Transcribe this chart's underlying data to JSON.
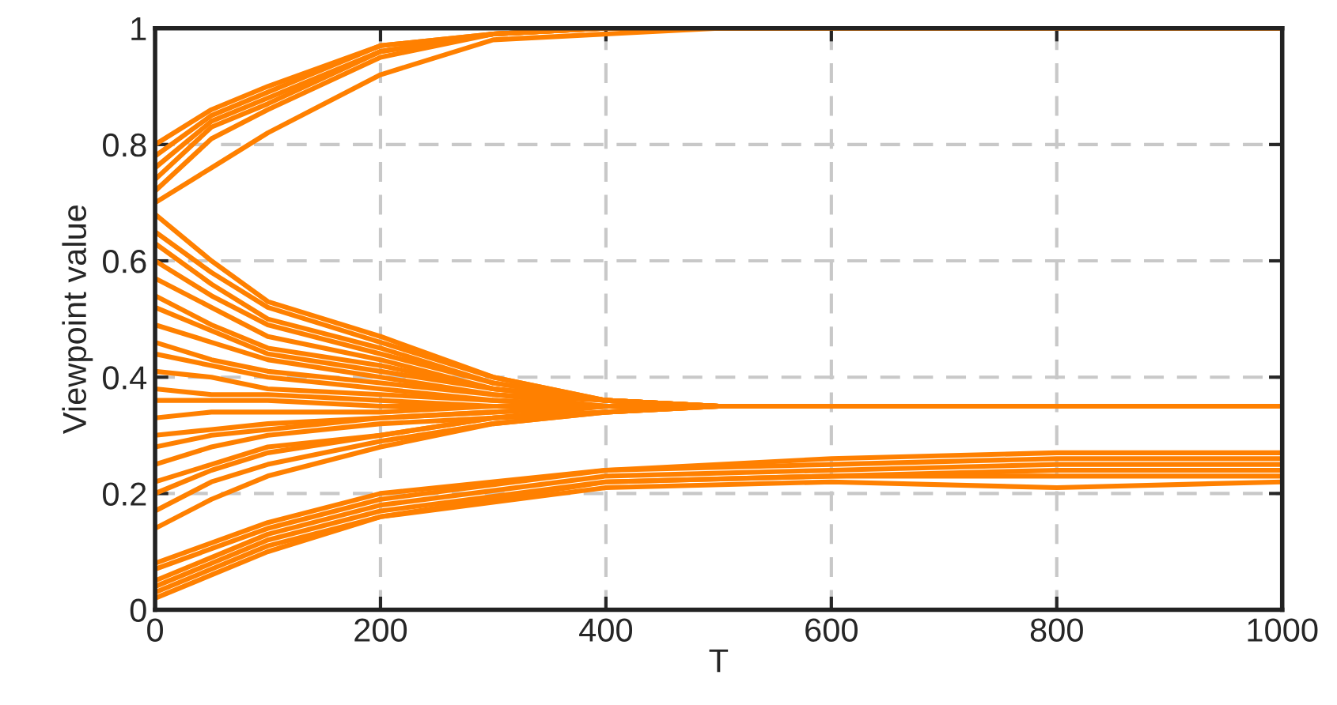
{
  "chart_data": {
    "type": "line",
    "xlabel": "T",
    "ylabel": "Viewpoint value",
    "xlim": [
      0,
      1000
    ],
    "xticks": [
      0,
      200,
      400,
      600,
      800,
      1000
    ],
    "ylim": [
      0,
      1
    ],
    "yticks": [
      0,
      0.2,
      0.4,
      0.6,
      0.8,
      1
    ],
    "grid": true,
    "line_style": "solid",
    "marker": "none",
    "x": [
      0,
      50,
      100,
      200,
      300,
      400,
      500,
      1000
    ],
    "series": [
      {
        "color": "#ff8000",
        "values": [
          0.8,
          0.86,
          0.9,
          0.97,
          0.99,
          1,
          1,
          1
        ]
      },
      {
        "color": "#ff8000",
        "values": [
          0.78,
          0.85,
          0.89,
          0.97,
          0.99,
          1,
          1,
          1
        ]
      },
      {
        "color": "#ff8000",
        "values": [
          0.76,
          0.84,
          0.88,
          0.96,
          0.99,
          1,
          1,
          1
        ]
      },
      {
        "color": "#ff8000",
        "values": [
          0.74,
          0.83,
          0.87,
          0.96,
          0.99,
          1,
          1,
          1
        ]
      },
      {
        "color": "#ff8000",
        "values": [
          0.72,
          0.81,
          0.86,
          0.95,
          0.99,
          1,
          1,
          1
        ]
      },
      {
        "color": "#ff8000",
        "values": [
          0.7,
          0.76,
          0.82,
          0.92,
          0.98,
          0.99,
          1,
          1
        ]
      },
      {
        "color": "#ff8000",
        "values": [
          0.68,
          0.6,
          0.53,
          0.47,
          0.4,
          0.36,
          0.35,
          0.35
        ]
      },
      {
        "color": "#ff8000",
        "values": [
          0.65,
          0.58,
          0.52,
          0.46,
          0.4,
          0.36,
          0.35,
          0.35
        ]
      },
      {
        "color": "#ff8000",
        "values": [
          0.63,
          0.56,
          0.5,
          0.45,
          0.39,
          0.36,
          0.35,
          0.35
        ]
      },
      {
        "color": "#ff8000",
        "values": [
          0.6,
          0.54,
          0.49,
          0.44,
          0.39,
          0.36,
          0.35,
          0.35
        ]
      },
      {
        "color": "#ff8000",
        "values": [
          0.57,
          0.52,
          0.47,
          0.43,
          0.38,
          0.36,
          0.35,
          0.35
        ]
      },
      {
        "color": "#ff8000",
        "values": [
          0.54,
          0.49,
          0.45,
          0.42,
          0.38,
          0.36,
          0.35,
          0.35
        ]
      },
      {
        "color": "#ff8000",
        "values": [
          0.52,
          0.48,
          0.44,
          0.41,
          0.38,
          0.36,
          0.35,
          0.35
        ]
      },
      {
        "color": "#ff8000",
        "values": [
          0.49,
          0.46,
          0.43,
          0.4,
          0.37,
          0.36,
          0.35,
          0.35
        ]
      },
      {
        "color": "#ff8000",
        "values": [
          0.46,
          0.43,
          0.41,
          0.39,
          0.37,
          0.35,
          0.35,
          0.35
        ]
      },
      {
        "color": "#ff8000",
        "values": [
          0.44,
          0.42,
          0.4,
          0.38,
          0.36,
          0.35,
          0.35,
          0.35
        ]
      },
      {
        "color": "#ff8000",
        "values": [
          0.41,
          0.4,
          0.38,
          0.37,
          0.36,
          0.35,
          0.35,
          0.35
        ]
      },
      {
        "color": "#ff8000",
        "values": [
          0.38,
          0.37,
          0.37,
          0.36,
          0.35,
          0.35,
          0.35,
          0.35
        ]
      },
      {
        "color": "#ff8000",
        "values": [
          0.36,
          0.36,
          0.36,
          0.35,
          0.35,
          0.35,
          0.35,
          0.35
        ]
      },
      {
        "color": "#ff8000",
        "values": [
          0.33,
          0.34,
          0.34,
          0.34,
          0.35,
          0.35,
          0.35,
          0.35
        ]
      },
      {
        "color": "#ff8000",
        "values": [
          0.3,
          0.31,
          0.32,
          0.33,
          0.34,
          0.35,
          0.35,
          0.35
        ]
      },
      {
        "color": "#ff8000",
        "values": [
          0.28,
          0.3,
          0.31,
          0.33,
          0.34,
          0.35,
          0.35,
          0.35
        ]
      },
      {
        "color": "#ff8000",
        "values": [
          0.25,
          0.28,
          0.3,
          0.32,
          0.33,
          0.35,
          0.35,
          0.35
        ]
      },
      {
        "color": "#ff8000",
        "values": [
          0.22,
          0.25,
          0.28,
          0.3,
          0.33,
          0.34,
          0.35,
          0.35
        ]
      },
      {
        "color": "#ff8000",
        "values": [
          0.2,
          0.24,
          0.27,
          0.3,
          0.33,
          0.34,
          0.35,
          0.35
        ]
      },
      {
        "color": "#ff8000",
        "values": [
          0.17,
          0.22,
          0.25,
          0.29,
          0.32,
          0.34,
          0.35,
          0.35
        ]
      },
      {
        "color": "#ff8000",
        "values": [
          0.14,
          0.19,
          0.23,
          0.28,
          0.32,
          0.34,
          0.35,
          0.35
        ]
      },
      {
        "color": "#ff8000",
        "x": [
          0,
          100,
          200,
          400,
          600,
          800,
          1000
        ],
        "values": [
          0.08,
          0.15,
          0.2,
          0.24,
          0.26,
          0.27,
          0.27
        ]
      },
      {
        "color": "#ff8000",
        "x": [
          0,
          100,
          200,
          400,
          600,
          800,
          1000
        ],
        "values": [
          0.07,
          0.14,
          0.19,
          0.24,
          0.25,
          0.26,
          0.26
        ]
      },
      {
        "color": "#ff8000",
        "x": [
          0,
          100,
          200,
          400,
          600,
          800,
          1000
        ],
        "values": [
          0.05,
          0.13,
          0.18,
          0.23,
          0.24,
          0.25,
          0.25
        ]
      },
      {
        "color": "#ff8000",
        "x": [
          0,
          100,
          200,
          400,
          600,
          800,
          1000
        ],
        "values": [
          0.04,
          0.12,
          0.17,
          0.22,
          0.23,
          0.24,
          0.24
        ]
      },
      {
        "color": "#ff8000",
        "x": [
          0,
          100,
          200,
          400,
          600,
          800,
          1000
        ],
        "values": [
          0.03,
          0.11,
          0.16,
          0.22,
          0.23,
          0.23,
          0.23
        ]
      },
      {
        "color": "#ff8000",
        "x": [
          0,
          100,
          200,
          400,
          600,
          800,
          1000
        ],
        "values": [
          0.02,
          0.1,
          0.16,
          0.21,
          0.22,
          0.21,
          0.22
        ]
      }
    ]
  }
}
